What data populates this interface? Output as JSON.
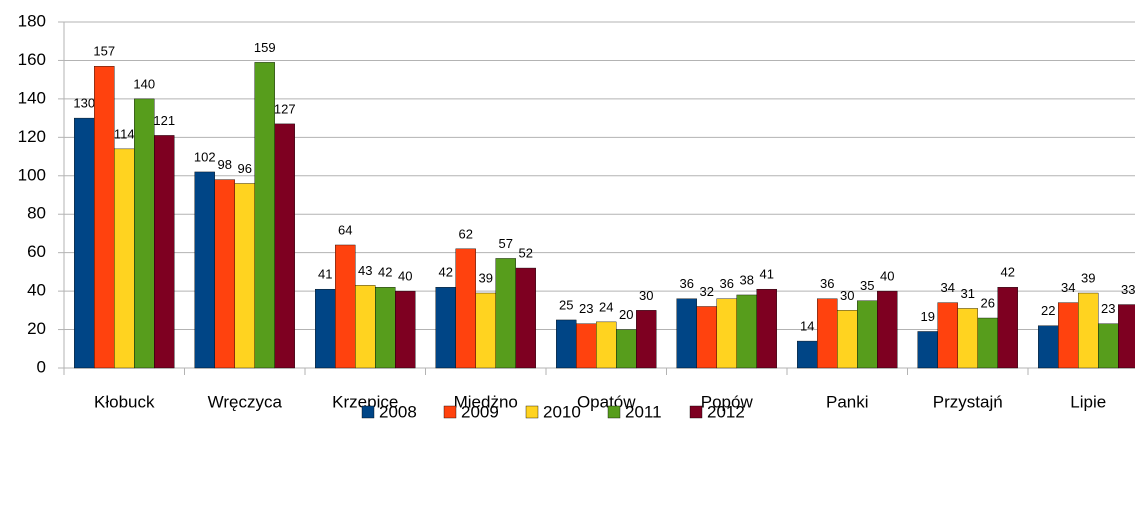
{
  "chart_data": {
    "type": "bar",
    "categories": [
      "Kłobuck",
      "Wręczyca",
      "Krzepice",
      "Miedżno",
      "Opatów",
      "Popów",
      "Panki",
      "Przystajń",
      "Lipie"
    ],
    "series": [
      {
        "name": "2008",
        "color": "#004586",
        "values": [
          130,
          102,
          41,
          42,
          25,
          36,
          14,
          19,
          22
        ]
      },
      {
        "name": "2009",
        "color": "#ff420e",
        "values": [
          157,
          98,
          64,
          62,
          23,
          32,
          36,
          34,
          34
        ]
      },
      {
        "name": "2010",
        "color": "#ffd320",
        "values": [
          114,
          96,
          43,
          39,
          24,
          36,
          30,
          31,
          39
        ]
      },
      {
        "name": "2011",
        "color": "#579d1c",
        "values": [
          140,
          159,
          42,
          57,
          20,
          38,
          35,
          26,
          23
        ]
      },
      {
        "name": "2012",
        "color": "#7e0021",
        "values": [
          121,
          127,
          40,
          52,
          30,
          41,
          40,
          42,
          33
        ]
      }
    ],
    "ylim": [
      0,
      180
    ],
    "yticks": [
      0,
      20,
      40,
      60,
      80,
      100,
      120,
      140,
      160,
      180
    ],
    "grid": true,
    "legend": "bottom"
  }
}
